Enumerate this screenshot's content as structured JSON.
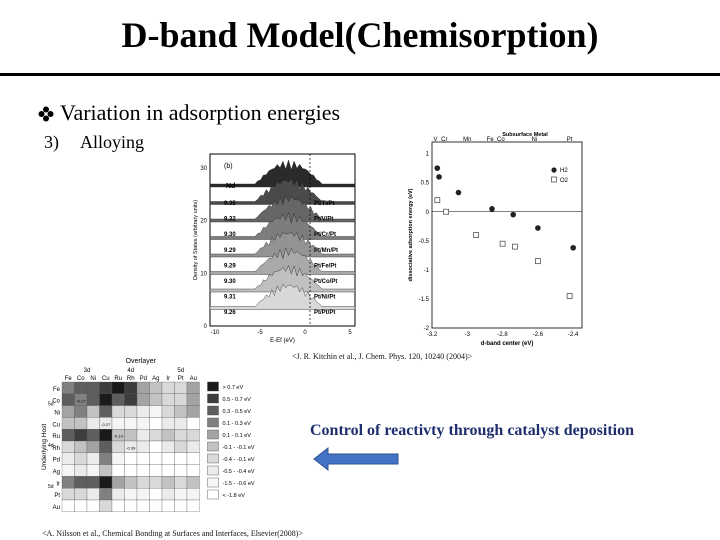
{
  "slide": {
    "title": "D-band Model(Chemisorption)",
    "bullet": "Variation in adsorption energies",
    "sub_number": "3)",
    "sub_text": "Alloying",
    "citation_top": "<J. R. Kitchin et al., J. Chem. Phys. 120, 10240 (2004)>",
    "citation_bottom": "<A. Nilsson et al., Chemical Bonding at Surfaces and Interfaces, Elsevier(2008)>",
    "control_text": "Control of reactivty through catalyst deposition",
    "arrow_color": "#4472c4"
  },
  "dos_panel": {
    "panel_label": "(b)",
    "na_header": "Nd",
    "ylabel": "Density of States (arbitrary units)",
    "xlabel": "E-Ef (eV)",
    "y_ticks": [
      "30",
      "20",
      "10",
      "0"
    ],
    "x_ticks": [
      "-10",
      "-5",
      "0",
      "5"
    ],
    "rows": [
      {
        "nd": "9.35",
        "label": "Pt/Ti/Pt"
      },
      {
        "nd": "9.32",
        "label": "Pt/V/Pt"
      },
      {
        "nd": "9.30",
        "label": "Pt/Cr/Pt"
      },
      {
        "nd": "9.29",
        "label": "Pt/Mn/Pt"
      },
      {
        "nd": "9.29",
        "label": "Pt/Fe/Pt"
      },
      {
        "nd": "9.30",
        "label": "Pt/Co/Pt"
      },
      {
        "nd": "9.31",
        "label": "Pt/Ni/Pt"
      },
      {
        "nd": "9.26",
        "label": "Pt/Pt/Pt"
      }
    ]
  },
  "chart_data": {
    "type": "scatter",
    "title": "Subsurface Metal",
    "top_labels": [
      "V",
      "Cr",
      "Mn",
      "Fe",
      "Co",
      "Ni",
      "Pt"
    ],
    "xlabel": "d-band center (eV)",
    "ylabel": "dissociative adsorption energy (eV)",
    "xlim": [
      -3.2,
      -2.35
    ],
    "ylim": [
      -2,
      1.2
    ],
    "x_ticks": [
      "-3.2",
      "-3",
      "-2.8",
      "-2.6",
      "-2.4"
    ],
    "y_ticks": [
      "1",
      "0.5",
      "0",
      "-0.5",
      "-1",
      "-1.5",
      "-2"
    ],
    "grid": false,
    "legend": "top-right",
    "series": [
      {
        "name": "H2",
        "marker": "filled-circle",
        "color": "#222222",
        "x": [
          -3.17,
          -3.16,
          -3.05,
          -2.86,
          -2.74,
          -2.6,
          -2.4
        ],
        "y": [
          0.75,
          0.6,
          0.33,
          0.05,
          -0.05,
          -0.28,
          -0.62
        ]
      },
      {
        "name": "O2",
        "marker": "open-square",
        "color": "#555555",
        "x": [
          -3.17,
          -3.12,
          -2.95,
          -2.8,
          -2.73,
          -2.6,
          -2.42
        ],
        "y": [
          0.2,
          0.0,
          -0.4,
          -0.55,
          -0.6,
          -0.85,
          -1.45
        ]
      }
    ]
  },
  "table_panel": {
    "header": "Overlayer",
    "row_axis_label": "Underlying Host",
    "group_labels": [
      "3d",
      "4d",
      "5d"
    ],
    "columns": [
      "Fe",
      "Co",
      "Ni",
      "Cu",
      "Ru",
      "Rh",
      "Pd",
      "Ag",
      "Ir",
      "Pt",
      "Au"
    ],
    "rows": [
      "Fe",
      "Co",
      "Ni",
      "Cu",
      "Ru",
      "Rh",
      "Pd",
      "Ag",
      "Ir",
      "Pt",
      "Au"
    ],
    "legend": [
      "> 0.7 eV",
      "0.5 - 0.7 eV",
      "0.3 - 0.5 eV",
      "0.1 - 0.3 eV",
      "0.1 - 0.1 eV",
      "-0.1 - -0.1 eV",
      "-0.4 - -0.1 eV",
      "-0.5 - -0.4 eV",
      "-1.5 - -0.6 eV",
      "< -1.8 eV"
    ],
    "legend_colors": [
      "#1a1a1a",
      "#3d3d3d",
      "#5e5e5e",
      "#808080",
      "#a3a3a3",
      "#c2c2c2",
      "#d9d9d9",
      "#ebebeb",
      "#f5f5f5",
      "#ffffff"
    ],
    "cell_values": [
      [
        "",
        "",
        "",
        "",
        "",
        "",
        "",
        "",
        "",
        "",
        ""
      ],
      [
        "",
        "-0.17",
        "",
        "",
        "",
        "",
        "",
        "",
        "",
        "",
        ""
      ],
      [
        "",
        "",
        "",
        "",
        "",
        "",
        "",
        "",
        "",
        "",
        ""
      ],
      [
        "",
        "",
        "",
        "-0.27",
        "",
        "",
        "",
        "",
        "",
        "",
        ""
      ],
      [
        "",
        "",
        "",
        "",
        "-0.14",
        "",
        "",
        "",
        "",
        "",
        ""
      ],
      [
        "",
        "",
        "",
        "",
        "",
        "-0.39",
        "",
        "",
        "",
        "",
        ""
      ],
      [
        "",
        "",
        "",
        "",
        "",
        "",
        "",
        "",
        "",
        "",
        ""
      ],
      [
        "",
        "",
        "",
        "",
        "",
        "",
        "",
        "",
        "",
        "",
        ""
      ],
      [
        "",
        "",
        "",
        "",
        "",
        "",
        "",
        "",
        "",
        "",
        ""
      ],
      [
        "",
        "",
        "",
        "",
        "",
        "",
        "",
        "",
        "",
        "",
        ""
      ],
      [
        "",
        "",
        "",
        "",
        "",
        "",
        "",
        "",
        "",
        "",
        ""
      ]
    ],
    "shade_levels": [
      [
        3,
        2,
        2,
        1,
        0,
        1,
        4,
        5,
        6,
        6,
        4
      ],
      [
        2,
        3,
        2,
        0,
        2,
        1,
        4,
        5,
        6,
        6,
        4
      ],
      [
        4,
        3,
        5,
        2,
        6,
        6,
        7,
        8,
        6,
        5,
        4
      ],
      [
        5,
        5,
        7,
        7,
        8,
        8,
        8,
        9,
        7,
        7,
        9
      ],
      [
        2,
        1,
        2,
        0,
        5,
        5,
        7,
        6,
        5,
        6,
        6
      ],
      [
        6,
        5,
        4,
        2,
        6,
        7,
        7,
        9,
        7,
        6,
        7
      ],
      [
        7,
        6,
        7,
        3,
        8,
        9,
        9,
        9,
        9,
        9,
        9
      ],
      [
        8,
        7,
        8,
        5,
        9,
        9,
        9,
        9,
        9,
        9,
        9
      ],
      [
        3,
        2,
        2,
        0,
        4,
        5,
        6,
        6,
        5,
        6,
        5
      ],
      [
        6,
        6,
        7,
        3,
        7,
        8,
        8,
        9,
        7,
        8,
        8
      ],
      [
        9,
        9,
        9,
        6,
        9,
        9,
        9,
        9,
        9,
        9,
        9
      ]
    ]
  }
}
